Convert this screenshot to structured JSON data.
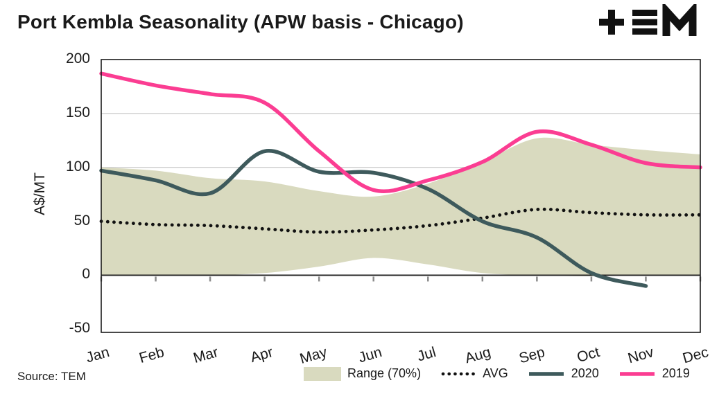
{
  "header": {
    "title": "Port Kembla Seasonality (APW basis - Chicago)",
    "logo": "TEM"
  },
  "y_axis_label": "A$/MT",
  "source": "Source: TEM",
  "legend": [
    {
      "label": "Range (70%)",
      "type": "band",
      "color": "#d9dabf"
    },
    {
      "label": "AVG",
      "type": "dotted",
      "color": "#111111"
    },
    {
      "label": "2020",
      "type": "line",
      "color": "#3e5a5c"
    },
    {
      "label": "2019",
      "type": "line",
      "color": "#fb3d92"
    }
  ],
  "chart_data": {
    "type": "line",
    "title": "Port Kembla Seasonality (APW basis - Chicago)",
    "xlabel": "",
    "ylabel": "A$/MT",
    "ylim": [
      -50,
      200
    ],
    "yticks": [
      -50,
      0,
      50,
      100,
      150,
      200
    ],
    "x_labels": [
      "Jan",
      "Feb",
      "Mar",
      "Apr",
      "May",
      "Jun",
      "Jul",
      "Aug",
      "Sep",
      "Oct",
      "Nov",
      "Dec"
    ],
    "grid": "horizontal",
    "legend_position": "bottom",
    "series": [
      {
        "name": "2019",
        "color": "#fb3d92",
        "style": "solid",
        "values": [
          187,
          176,
          168,
          160,
          115,
          79,
          88,
          105,
          133,
          121,
          104,
          100
        ]
      },
      {
        "name": "2020",
        "color": "#3e5a5c",
        "style": "solid",
        "values": [
          97,
          88,
          76,
          115,
          96,
          95,
          80,
          50,
          35,
          2,
          -10,
          null
        ]
      },
      {
        "name": "AVG",
        "color": "#111111",
        "style": "dotted",
        "values": [
          50,
          47,
          46,
          43,
          40,
          42,
          46,
          53,
          61,
          58,
          56,
          56
        ]
      }
    ],
    "band": {
      "name": "Range (70%)",
      "color": "#d9dabf",
      "upper": [
        100,
        97,
        90,
        87,
        78,
        73,
        85,
        105,
        127,
        121,
        116,
        112
      ],
      "lower": [
        0,
        0,
        0,
        2,
        8,
        16,
        10,
        2,
        0,
        -1,
        0,
        0
      ]
    }
  }
}
